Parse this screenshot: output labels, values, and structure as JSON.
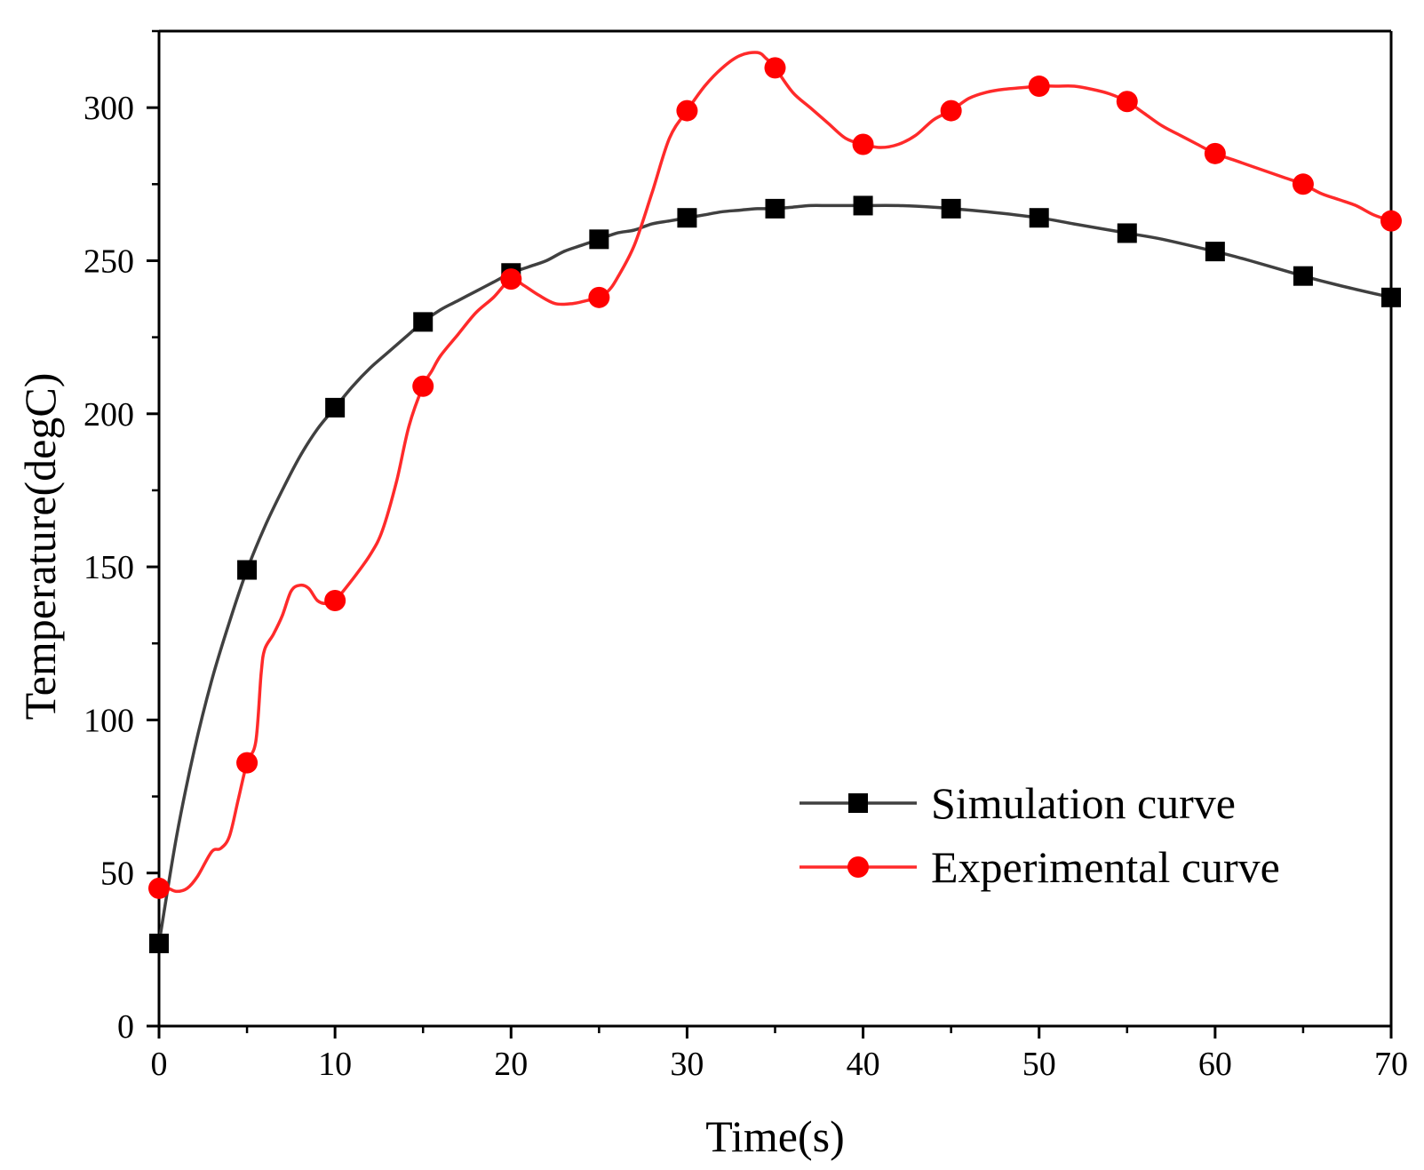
{
  "chart_data": {
    "type": "line",
    "title": "",
    "xlabel": "Time(s)",
    "ylabel": "Temperature(degC)",
    "xlim": [
      0,
      70
    ],
    "ylim": [
      0,
      325
    ],
    "xticks": [
      0,
      10,
      20,
      30,
      40,
      50,
      60,
      70
    ],
    "yticks": [
      0,
      50,
      100,
      150,
      200,
      250,
      300
    ],
    "grid": false,
    "legend_position": "center-right",
    "series": [
      {
        "name": "Simulation curve",
        "color": "#404040",
        "marker": "square",
        "marker_color": "#000000",
        "x": [
          0,
          5,
          10,
          15,
          20,
          25,
          30,
          35,
          40,
          45,
          50,
          55,
          60,
          65,
          70
        ],
        "y": [
          27,
          149,
          202,
          230,
          246,
          257,
          264,
          267,
          268,
          267,
          264,
          259,
          253,
          245,
          238
        ],
        "curve": [
          [
            0,
            27
          ],
          [
            1,
            62
          ],
          [
            2,
            90
          ],
          [
            3,
            113
          ],
          [
            4,
            132
          ],
          [
            5,
            149
          ],
          [
            6,
            163
          ],
          [
            7,
            175
          ],
          [
            8,
            186
          ],
          [
            9,
            195
          ],
          [
            10,
            202
          ],
          [
            11,
            209
          ],
          [
            12,
            215
          ],
          [
            13,
            220
          ],
          [
            14,
            225
          ],
          [
            15,
            230
          ],
          [
            16,
            234
          ],
          [
            17,
            237
          ],
          [
            18,
            240
          ],
          [
            19,
            243
          ],
          [
            20,
            246
          ],
          [
            21,
            248
          ],
          [
            22,
            250
          ],
          [
            23,
            253
          ],
          [
            24,
            255
          ],
          [
            25,
            257
          ],
          [
            26,
            259
          ],
          [
            27,
            260
          ],
          [
            28,
            262
          ],
          [
            29,
            263
          ],
          [
            30,
            264
          ],
          [
            31,
            265
          ],
          [
            32,
            266
          ],
          [
            33,
            266.5
          ],
          [
            34,
            267
          ],
          [
            35,
            267
          ],
          [
            36,
            267.5
          ],
          [
            37,
            268
          ],
          [
            38,
            268
          ],
          [
            39,
            268
          ],
          [
            40,
            268
          ],
          [
            42,
            268
          ],
          [
            44,
            267.5
          ],
          [
            45,
            267
          ],
          [
            47,
            266
          ],
          [
            50,
            264
          ],
          [
            52,
            262
          ],
          [
            55,
            259
          ],
          [
            57,
            257
          ],
          [
            60,
            253
          ],
          [
            62,
            250
          ],
          [
            65,
            245
          ],
          [
            67,
            242
          ],
          [
            70,
            238
          ]
        ]
      },
      {
        "name": "Experimental curve",
        "color": "#ff2a2a",
        "marker": "circle",
        "marker_color": "#ff0000",
        "x": [
          0,
          5,
          10,
          15,
          20,
          25,
          30,
          35,
          40,
          45,
          50,
          55,
          60,
          65,
          70
        ],
        "y": [
          45,
          86,
          139,
          209,
          244,
          238,
          299,
          313,
          288,
          299,
          307,
          302,
          285,
          275,
          263
        ],
        "curve": [
          [
            0,
            45
          ],
          [
            0.5,
            45
          ],
          [
            1,
            44
          ],
          [
            1.6,
            45
          ],
          [
            2.2,
            49
          ],
          [
            3,
            57
          ],
          [
            3.5,
            58
          ],
          [
            4,
            62
          ],
          [
            4.5,
            74
          ],
          [
            5,
            86
          ],
          [
            5.5,
            93
          ],
          [
            5.8,
            115
          ],
          [
            6,
            123
          ],
          [
            6.5,
            128
          ],
          [
            7,
            134
          ],
          [
            7.5,
            142
          ],
          [
            8,
            144
          ],
          [
            8.5,
            143
          ],
          [
            9,
            139
          ],
          [
            9.5,
            138
          ],
          [
            10,
            139
          ],
          [
            11,
            146
          ],
          [
            12,
            154
          ],
          [
            12.7,
            162
          ],
          [
            13.5,
            178
          ],
          [
            14.2,
            196
          ],
          [
            15,
            209
          ],
          [
            15.5,
            214
          ],
          [
            16,
            219
          ],
          [
            17,
            226
          ],
          [
            18,
            233
          ],
          [
            19,
            238
          ],
          [
            20,
            244
          ],
          [
            20.7,
            242
          ],
          [
            21.5,
            239
          ],
          [
            22.5,
            236
          ],
          [
            23.5,
            236
          ],
          [
            24.3,
            237
          ],
          [
            25,
            238
          ],
          [
            25.5,
            240
          ],
          [
            26,
            244
          ],
          [
            27,
            255
          ],
          [
            28,
            272
          ],
          [
            29,
            290
          ],
          [
            30,
            299
          ],
          [
            31,
            307
          ],
          [
            32,
            313
          ],
          [
            33,
            317
          ],
          [
            34,
            318
          ],
          [
            34.5,
            316
          ],
          [
            35,
            313
          ],
          [
            36,
            305
          ],
          [
            37,
            300
          ],
          [
            38,
            295
          ],
          [
            39,
            290
          ],
          [
            40,
            288
          ],
          [
            41,
            287
          ],
          [
            42,
            288
          ],
          [
            43,
            291
          ],
          [
            44,
            296
          ],
          [
            45,
            299
          ],
          [
            46,
            303
          ],
          [
            47,
            305
          ],
          [
            48,
            306
          ],
          [
            49,
            306.5
          ],
          [
            50,
            307
          ],
          [
            51,
            307
          ],
          [
            52,
            307
          ],
          [
            53,
            306
          ],
          [
            54,
            304.5
          ],
          [
            55,
            302
          ],
          [
            56,
            298
          ],
          [
            57,
            294
          ],
          [
            58,
            291
          ],
          [
            59,
            288
          ],
          [
            60,
            285
          ],
          [
            61,
            283
          ],
          [
            62,
            281
          ],
          [
            63,
            279
          ],
          [
            64,
            277
          ],
          [
            65,
            275
          ],
          [
            66,
            272
          ],
          [
            67,
            270
          ],
          [
            68,
            268
          ],
          [
            69,
            265
          ],
          [
            70,
            263
          ]
        ]
      }
    ]
  }
}
